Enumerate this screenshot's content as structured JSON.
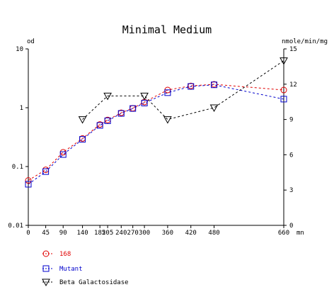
{
  "chart_data": {
    "type": "line",
    "title": "Minimal Medium",
    "left_axis": {
      "label": "od",
      "scale": "log",
      "range": [
        0.01,
        10
      ],
      "ticks": [
        0.01,
        0.1,
        1,
        10
      ],
      "tick_labels": [
        "0.01",
        "0.1",
        "1",
        "10"
      ]
    },
    "right_axis": {
      "label": "nmole/min/mg",
      "scale": "linear",
      "range": [
        0,
        15
      ],
      "ticks": [
        0,
        3,
        6,
        9,
        12,
        15
      ],
      "tick_labels": [
        "0",
        "3",
        "6",
        "9",
        "12",
        "15"
      ]
    },
    "x_axis": {
      "label": "mn",
      "range": [
        0,
        660
      ],
      "ticks": [
        0,
        45,
        90,
        140,
        185,
        205,
        240,
        270,
        300,
        360,
        420,
        480,
        660
      ],
      "tick_labels": [
        "0",
        "45",
        "90",
        "140",
        "185",
        "205",
        "240",
        "270",
        "300",
        "360",
        "420",
        "480",
        "660"
      ]
    },
    "legend_position": "bottom-left",
    "grid": false,
    "series": [
      {
        "name": "168",
        "axis": "left",
        "color": "#e00000",
        "marker": "circle",
        "x": [
          0,
          45,
          90,
          140,
          185,
          205,
          240,
          270,
          300,
          360,
          420,
          480,
          660
        ],
        "y": [
          0.058,
          0.088,
          0.175,
          0.3,
          0.52,
          0.62,
          0.82,
          0.98,
          1.25,
          2.0,
          2.35,
          2.5,
          2.0
        ]
      },
      {
        "name": "Mutant",
        "axis": "left",
        "color": "#0000cc",
        "marker": "square",
        "x": [
          0,
          45,
          90,
          140,
          185,
          205,
          240,
          270,
          300,
          360,
          420,
          480,
          660
        ],
        "y": [
          0.05,
          0.082,
          0.16,
          0.29,
          0.5,
          0.6,
          0.8,
          0.97,
          1.2,
          1.8,
          2.3,
          2.45,
          1.4
        ]
      },
      {
        "name": "Beta Galactosidase",
        "axis": "right",
        "color": "#000000",
        "marker": "triangle-down",
        "x": [
          140,
          205,
          300,
          360,
          480,
          660
        ],
        "y": [
          9.0,
          11.0,
          11.0,
          9.0,
          10.0,
          14.0
        ]
      }
    ]
  }
}
